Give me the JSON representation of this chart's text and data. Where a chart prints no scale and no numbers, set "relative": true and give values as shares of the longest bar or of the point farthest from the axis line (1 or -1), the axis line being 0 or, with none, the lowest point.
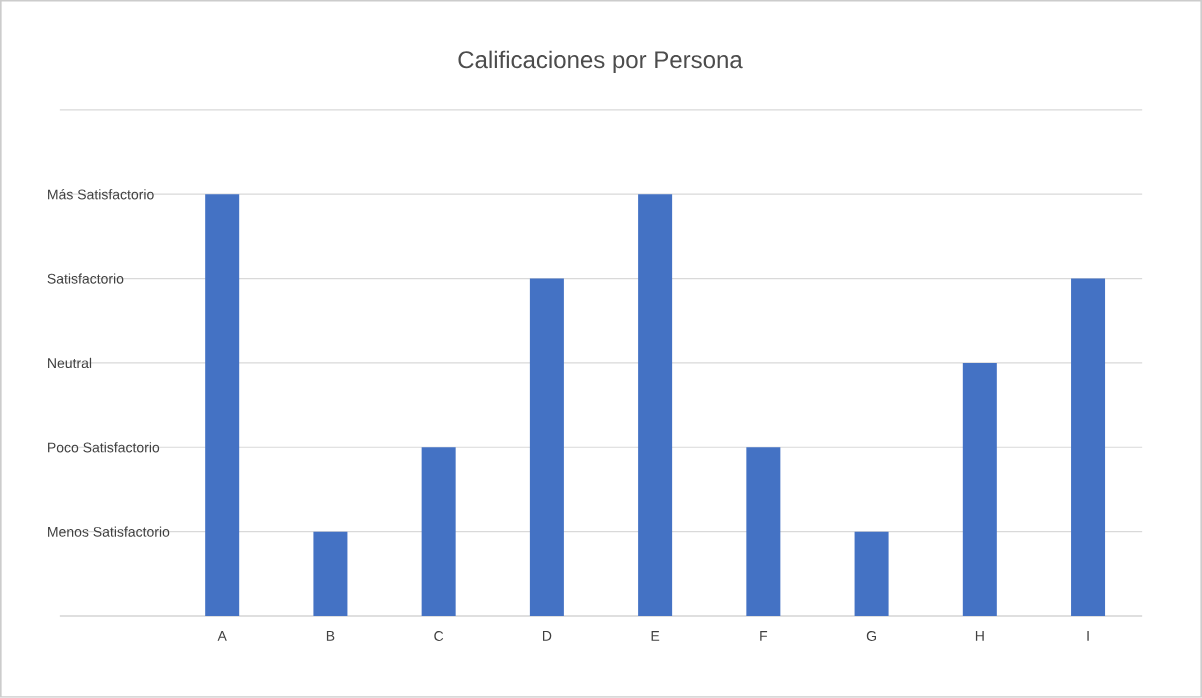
{
  "chart_data": {
    "type": "bar",
    "title": "Calificaciones por Persona",
    "categories": [
      "A",
      "B",
      "C",
      "D",
      "E",
      "F",
      "G",
      "H",
      "I"
    ],
    "values": [
      1,
      0.2,
      0.4,
      0.8,
      1,
      0.4,
      0.2,
      0.6,
      0.8
    ],
    "relative": true,
    "color": "#4472c4",
    "ref_lines": [
      {
        "axis": "y",
        "value": 0.2,
        "label": "Menos Satisfactorio",
        "color": "#d9d9d9"
      },
      {
        "axis": "y",
        "value": 0.4,
        "label": "Poco Satisfactorio",
        "color": "#d9d9d9"
      },
      {
        "axis": "y",
        "value": 0.6,
        "label": "Neutral",
        "color": "#d9d9d9"
      },
      {
        "axis": "y",
        "value": 0.8,
        "label": "Satisfactorio",
        "color": "#d9d9d9"
      },
      {
        "axis": "y",
        "value": 1,
        "label": "Más Satisfactorio",
        "color": "#d9d9d9"
      },
      {
        "axis": "y",
        "value": 1.2,
        "color": "#d9d9d9"
      }
    ]
  }
}
